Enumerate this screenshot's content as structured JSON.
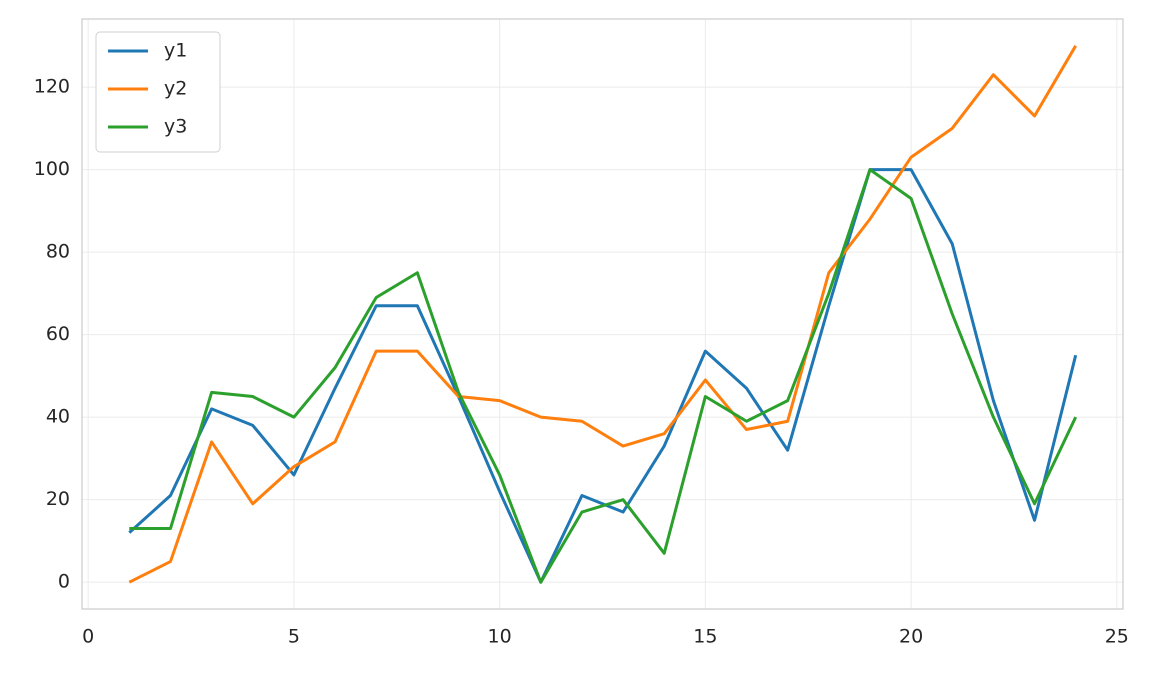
{
  "chart_data": {
    "type": "line",
    "x": [
      1,
      2,
      3,
      4,
      5,
      6,
      7,
      8,
      9,
      10,
      11,
      12,
      13,
      14,
      15,
      16,
      17,
      18,
      19,
      20,
      21,
      22,
      23,
      24
    ],
    "series": [
      {
        "name": "y1",
        "color": "#1f77b4",
        "values": [
          12,
          21,
          42,
          38,
          26,
          47,
          67,
          67,
          45,
          22,
          0,
          21,
          17,
          33,
          56,
          47,
          32,
          67,
          100,
          100,
          82,
          44,
          15,
          55
        ]
      },
      {
        "name": "y2",
        "color": "#ff7f0e",
        "values": [
          0,
          5,
          34,
          19,
          28,
          34,
          56,
          56,
          45,
          44,
          40,
          39,
          33,
          36,
          49,
          37,
          39,
          75,
          88,
          103,
          110,
          123,
          113,
          130
        ]
      },
      {
        "name": "y3",
        "color": "#2ca02c",
        "values": [
          13,
          13,
          46,
          45,
          40,
          52,
          69,
          75,
          46,
          26,
          0,
          17,
          20,
          7,
          45,
          39,
          44,
          70,
          100,
          93,
          65,
          40,
          19,
          40
        ]
      }
    ],
    "xlim": [
      -0.15,
      25.15
    ],
    "xticks": [
      0,
      5,
      10,
      15,
      20,
      25
    ],
    "ylim": [
      -6.5,
      136.5
    ],
    "yticks": [
      0,
      20,
      40,
      60,
      80,
      100,
      120
    ],
    "grid": true,
    "legend": "upper left"
  }
}
